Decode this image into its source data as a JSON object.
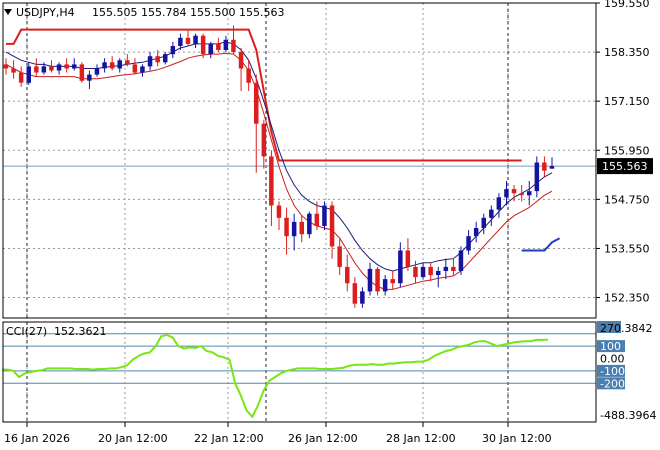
{
  "header": {
    "symbol": "USDJPY,H4",
    "ohlc": "155.505 155.784 155.500 155.563"
  },
  "colors": {
    "bull": "#1414a0",
    "bear": "#dc1e1e",
    "upper_band": "#dc1e1e",
    "ma_fast": "#1e1e78",
    "ma_slow": "#c81e1e",
    "cci": "#78e614",
    "grid": "#9a9a9a",
    "current_price_bg": "#000000",
    "level_bg": "#4a7fb0"
  },
  "chart_data": [
    {
      "type": "candlestick",
      "title": "USDJPY,H4",
      "ylim": [
        151.85,
        159.55
      ],
      "y_ticks": [
        "159.550",
        "158.350",
        "157.150",
        "155.950",
        "154.750",
        "153.550",
        "152.350"
      ],
      "y_tick_values": [
        159.55,
        158.35,
        157.15,
        155.95,
        154.75,
        153.55,
        152.35
      ],
      "current_price": "155.563",
      "current_price_value": 155.563,
      "x_labels": [
        "16 Jan 2026",
        "20 Jan 12:00",
        "22 Jan 12:00",
        "26 Jan 12:00",
        "28 Jan 12:00",
        "30 Jan 12:00"
      ],
      "candles": [
        [
          158.05,
          158.2,
          157.8,
          157.95
        ],
        [
          157.95,
          158.15,
          157.7,
          157.85
        ],
        [
          157.85,
          158.0,
          157.5,
          157.6
        ],
        [
          157.6,
          158.1,
          157.55,
          158.0
        ],
        [
          158.0,
          158.2,
          157.75,
          157.85
        ],
        [
          157.85,
          158.1,
          157.8,
          158.0
        ],
        [
          158.0,
          158.15,
          157.85,
          157.9
        ],
        [
          157.9,
          158.1,
          157.8,
          158.05
        ],
        [
          158.05,
          158.2,
          157.85,
          157.95
        ],
        [
          157.95,
          158.2,
          157.9,
          158.05
        ],
        [
          158.05,
          158.1,
          157.6,
          157.65
        ],
        [
          157.65,
          157.9,
          157.45,
          157.8
        ],
        [
          157.8,
          158.05,
          157.75,
          157.95
        ],
        [
          157.95,
          158.2,
          157.85,
          158.1
        ],
        [
          158.1,
          158.25,
          157.9,
          157.95
        ],
        [
          157.95,
          158.2,
          157.85,
          158.15
        ],
        [
          158.15,
          158.3,
          158.0,
          158.05
        ],
        [
          158.05,
          158.2,
          157.8,
          157.85
        ],
        [
          157.85,
          158.05,
          157.75,
          158.0
        ],
        [
          158.0,
          158.35,
          157.9,
          158.25
        ],
        [
          158.25,
          158.4,
          158.0,
          158.1
        ],
        [
          158.1,
          158.35,
          158.05,
          158.3
        ],
        [
          158.3,
          158.6,
          158.2,
          158.5
        ],
        [
          158.5,
          158.8,
          158.4,
          158.7
        ],
        [
          158.7,
          158.9,
          158.5,
          158.55
        ],
        [
          158.55,
          158.8,
          158.45,
          158.75
        ],
        [
          158.75,
          158.8,
          158.2,
          158.3
        ],
        [
          158.3,
          158.6,
          158.2,
          158.55
        ],
        [
          158.55,
          158.7,
          158.35,
          158.4
        ],
        [
          158.4,
          158.75,
          158.35,
          158.65
        ],
        [
          158.65,
          159.0,
          158.3,
          158.35
        ],
        [
          158.35,
          158.45,
          157.4,
          157.95
        ],
        [
          157.95,
          158.15,
          157.4,
          157.6
        ],
        [
          157.6,
          157.8,
          155.4,
          156.6
        ],
        [
          156.6,
          156.7,
          155.5,
          155.8
        ],
        [
          155.8,
          155.95,
          154.1,
          154.6
        ],
        [
          154.6,
          154.7,
          154.0,
          154.3
        ],
        [
          154.3,
          154.55,
          153.4,
          153.85
        ],
        [
          153.85,
          154.4,
          153.5,
          154.2
        ],
        [
          154.2,
          154.35,
          153.7,
          153.9
        ],
        [
          153.9,
          154.45,
          153.8,
          154.4
        ],
        [
          154.4,
          154.7,
          154.0,
          154.1
        ],
        [
          154.1,
          154.7,
          154.0,
          154.6
        ],
        [
          154.6,
          154.7,
          153.3,
          153.6
        ],
        [
          153.6,
          153.8,
          152.9,
          153.1
        ],
        [
          153.1,
          153.4,
          152.5,
          152.7
        ],
        [
          152.7,
          152.85,
          152.1,
          152.2
        ],
        [
          152.2,
          152.6,
          152.1,
          152.5
        ],
        [
          152.5,
          153.2,
          152.4,
          153.05
        ],
        [
          153.05,
          153.1,
          152.4,
          152.5
        ],
        [
          152.5,
          152.9,
          152.4,
          152.8
        ],
        [
          152.8,
          153.0,
          152.55,
          152.7
        ],
        [
          152.7,
          153.7,
          152.6,
          153.5
        ],
        [
          153.5,
          153.8,
          153.0,
          153.1
        ],
        [
          153.1,
          153.25,
          152.7,
          152.85
        ],
        [
          152.85,
          153.2,
          152.8,
          153.1
        ],
        [
          153.1,
          153.2,
          152.75,
          152.9
        ],
        [
          152.9,
          153.1,
          152.6,
          153.0
        ],
        [
          153.0,
          153.3,
          152.8,
          153.1
        ],
        [
          153.1,
          153.3,
          152.9,
          153.0
        ],
        [
          153.0,
          153.6,
          152.9,
          153.5
        ],
        [
          153.5,
          154.0,
          153.4,
          153.85
        ],
        [
          153.85,
          154.2,
          153.7,
          154.05
        ],
        [
          154.05,
          154.4,
          153.9,
          154.3
        ],
        [
          154.3,
          154.6,
          154.1,
          154.5
        ],
        [
          154.5,
          154.9,
          154.3,
          154.8
        ],
        [
          154.8,
          155.2,
          154.6,
          155.0
        ],
        [
          155.0,
          155.1,
          154.7,
          154.9
        ],
        [
          154.9,
          155.1,
          154.7,
          154.85
        ],
        [
          154.85,
          155.2,
          154.6,
          154.95
        ],
        [
          154.95,
          155.8,
          154.8,
          155.65
        ],
        [
          155.65,
          155.8,
          155.3,
          155.45
        ],
        [
          155.5,
          155.78,
          155.5,
          155.563
        ]
      ],
      "overlays": [
        {
          "kind": "upper_envelope",
          "segments": [
            [
              [
                158.55,
                158.55,
                158.9,
                158.9,
                158.9,
                158.9,
                158.9,
                158.9,
                158.9,
                158.9,
                158.9,
                158.9,
                158.9,
                158.9,
                158.9,
                158.9,
                158.9,
                158.9,
                158.9,
                158.9,
                158.9,
                158.9,
                158.9,
                158.9,
                158.9,
                158.9,
                158.9,
                158.9,
                158.9,
                158.9,
                158.9,
                158.9,
                158.9,
                158.4,
                157.4,
                156.4,
                155.7,
                155.7,
                155.7,
                155.7,
                155.7,
                155.7,
                155.7,
                155.7,
                155.7,
                155.7,
                155.7,
                155.7,
                155.7,
                155.7,
                155.7,
                155.7,
                155.7,
                155.7,
                155.7,
                155.7,
                155.7,
                155.7,
                155.7,
                155.7,
                155.7,
                155.7,
                155.7,
                155.7,
                155.7,
                155.7,
                155.7,
                155.7,
                155.7
              ],
              0
            ],
            [
              [
                153.5,
                153.5,
                153.5,
                153.5,
                153.7,
                153.8
              ],
              68
            ]
          ]
        },
        {
          "kind": "ma_fast",
          "values": [
            158.35,
            158.25,
            158.15,
            158.1,
            158.05,
            158.05,
            158.0,
            158.0,
            158.0,
            158.0,
            157.95,
            157.95,
            157.95,
            157.98,
            158.0,
            158.02,
            158.05,
            158.08,
            158.1,
            158.15,
            158.2,
            158.25,
            158.35,
            158.45,
            158.5,
            158.55,
            158.55,
            158.55,
            158.55,
            158.6,
            158.55,
            158.4,
            158.15,
            157.7,
            157.15,
            156.55,
            155.95,
            155.45,
            155.1,
            154.85,
            154.7,
            154.6,
            154.55,
            154.5,
            154.3,
            154.05,
            153.75,
            153.5,
            153.3,
            153.15,
            153.05,
            153.0,
            153.05,
            153.1,
            153.15,
            153.2,
            153.2,
            153.25,
            153.28,
            153.3,
            153.45,
            153.65,
            153.85,
            154.05,
            154.25,
            154.45,
            154.65,
            154.8,
            154.9,
            155.0,
            155.15,
            155.3,
            155.4
          ]
        },
        {
          "kind": "ma_slow",
          "values": [
            158.05,
            157.95,
            157.85,
            157.8,
            157.75,
            157.75,
            157.75,
            157.75,
            157.75,
            157.75,
            157.7,
            157.7,
            157.7,
            157.72,
            157.75,
            157.78,
            157.8,
            157.82,
            157.85,
            157.88,
            157.92,
            157.98,
            158.05,
            158.12,
            158.2,
            158.25,
            158.28,
            158.3,
            158.3,
            158.32,
            158.3,
            158.15,
            157.9,
            157.45,
            156.85,
            156.2,
            155.55,
            155.0,
            154.6,
            154.35,
            154.2,
            154.1,
            154.05,
            154.0,
            153.8,
            153.5,
            153.2,
            152.95,
            152.75,
            152.62,
            152.55,
            152.55,
            152.6,
            152.65,
            152.7,
            152.75,
            152.78,
            152.82,
            152.85,
            152.88,
            153.0,
            153.2,
            153.4,
            153.6,
            153.8,
            154.0,
            154.2,
            154.35,
            154.45,
            154.55,
            154.7,
            154.85,
            154.95
          ]
        }
      ]
    },
    {
      "type": "line",
      "title": "CCI(27)",
      "current_value": "152.3621",
      "ylim": [
        -488.3964,
        270.3842
      ],
      "y_labels": [
        "270.3842",
        "100",
        "0.00",
        "-100",
        "-200",
        "-488.3964"
      ],
      "levels": [
        200,
        100,
        -100,
        -200
      ],
      "values": [
        -90,
        -90,
        -100,
        -150,
        -120,
        -110,
        -100,
        -95,
        -80,
        -80,
        -80,
        -80,
        -80,
        -85,
        -85,
        -85,
        -90,
        -85,
        -85,
        -80,
        -80,
        -70,
        -55,
        -10,
        20,
        40,
        50,
        100,
        180,
        190,
        170,
        100,
        80,
        90,
        85,
        100,
        60,
        50,
        20,
        10,
        -10,
        -200,
        -300,
        -420,
        -470,
        -380,
        -260,
        -180,
        -150,
        -120,
        -100,
        -90,
        -80,
        -80,
        -80,
        -80,
        -85,
        -85,
        -85,
        -80,
        -75,
        -60,
        -50,
        -50,
        -50,
        -45,
        -50,
        -50,
        -40,
        -40,
        -35,
        -30,
        -30,
        -25,
        -25,
        -10,
        20,
        40,
        60,
        70,
        90,
        100,
        110,
        130,
        140,
        140,
        120,
        100,
        110,
        120,
        130,
        135,
        140,
        140,
        150,
        150,
        152
      ]
    }
  ]
}
